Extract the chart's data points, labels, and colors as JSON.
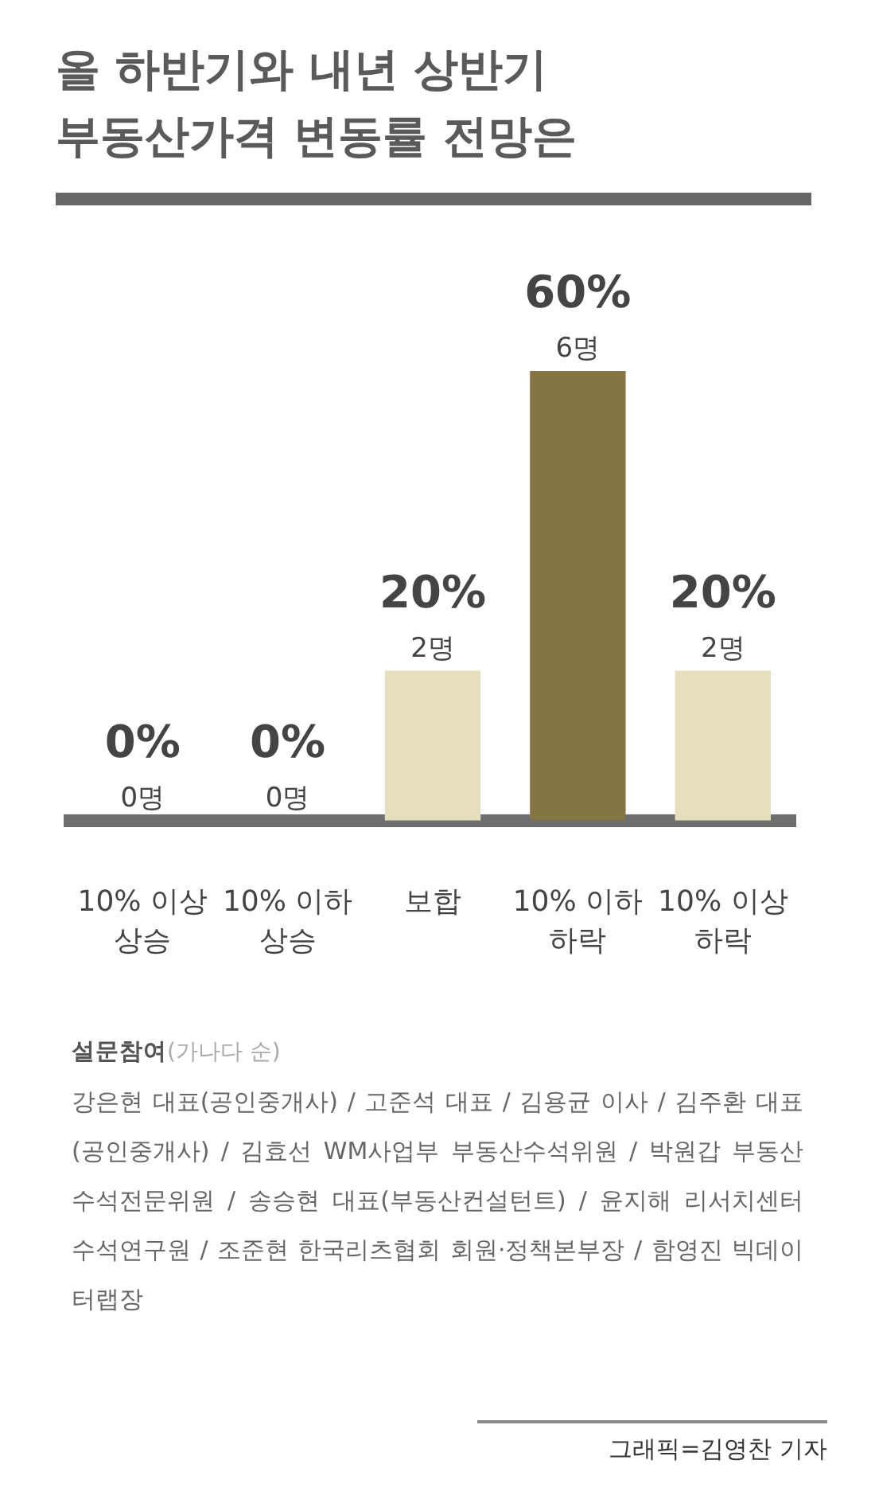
{
  "chart_data": {
    "type": "bar",
    "title": "올 하반기와 내년 상반기 부동산가격 변동률 전망은",
    "categories": [
      "10% 이상 상승",
      "10% 이하 상승",
      "보합",
      "10% 이하 하락",
      "10% 이상 하락"
    ],
    "values": [
      0,
      0,
      20,
      60,
      20
    ],
    "colors": [
      "#e6dfbd",
      "#e6dfbd",
      "#e6dfbd",
      "#857446",
      "#e6dfbd"
    ],
    "value_labels": [
      "0%",
      "0%",
      "20%",
      "60%",
      "20%"
    ],
    "tick_labels": "x",
    "annotations": [
      {
        "text": "0명",
        "x": "10% 이상 상승",
        "y": 0
      },
      {
        "text": "0명",
        "x": "10% 이하 상승",
        "y": 0
      },
      {
        "text": "2명",
        "x": "보합",
        "y": 20
      },
      {
        "text": "6명",
        "x": "10% 이하 하락",
        "y": 60
      },
      {
        "text": "2명",
        "x": "10% 이상 하락",
        "y": 20
      },
      "설문참여",
      "(가나다 순)",
      "강은현 대표(공인중개사) / 고준석 대표 / 김용균 이사 / 김주환 대표(공인중개사) / 김효선 WM사업부 부동산수석위원 / 박원갑 부동산 수석전문위원 / 송승현 대표(부동산컨설턴트) / 윤지해 리서치센터 수석연구원 / 조준현 한국리츠협회 회원·정책본부장 / 함영진 빅데이터랩장",
      "그래픽=김영찬 기자"
    ]
  }
}
